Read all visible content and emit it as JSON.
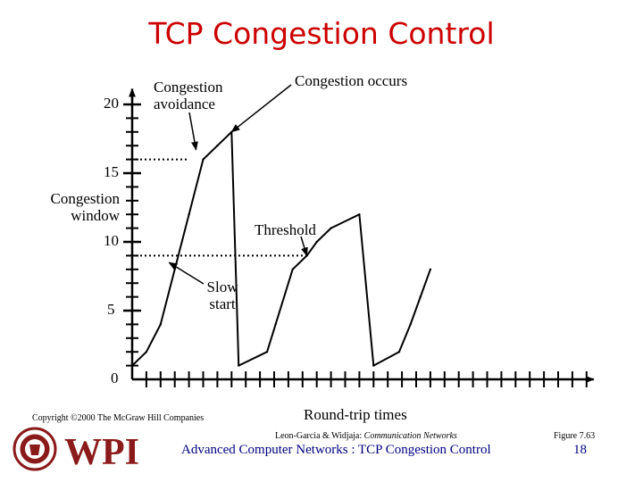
{
  "slide": {
    "title": "TCP Congestion Control",
    "copyright": "Copyright ©2000 The McGraw Hill Companies",
    "source_credit_prefix": "Leon-Garcia & Widjaja: ",
    "source_credit_book": "Communication Networks",
    "figure_ref": "Figure 7.63",
    "footer_title": "Advanced Computer Networks : TCP Congestion Control",
    "page_number": "18",
    "logo_text": "WPI",
    "logo_seal_text": "WORCESTER POLYTECHNIC INSTITUTE 1865"
  },
  "chart_data": {
    "type": "line",
    "title": "",
    "ylabel": "Congestion window",
    "xlabel": "Round-trip times",
    "yticks": [
      0,
      5,
      10,
      15,
      20
    ],
    "ylim": [
      0,
      21
    ],
    "xlim": [
      0,
      32
    ],
    "series": [
      {
        "x": [
          0,
          1,
          2,
          3,
          4,
          5,
          6,
          7,
          7.5,
          9.5,
          10.1,
          11.3,
          12.3,
          13,
          14,
          16,
          17,
          18.8,
          19.6,
          20.3,
          21
        ],
        "y": [
          1,
          2,
          4,
          8,
          12,
          16,
          17,
          18,
          1,
          2,
          4,
          8,
          9,
          10,
          11,
          12,
          1,
          2,
          4,
          6,
          8
        ]
      }
    ],
    "reference_lines": [
      {
        "y": 16,
        "x_start": 0,
        "x_end": 4,
        "style": "dotted"
      },
      {
        "y": 9,
        "x_start": 0,
        "x_end": 12.4,
        "style": "dotted"
      }
    ],
    "annotations": [
      {
        "text": "Congestion occurs",
        "target": [
          7,
          18
        ]
      },
      {
        "text": "Congestion avoidance",
        "target": [
          4.5,
          16.7
        ]
      },
      {
        "text": "Threshold",
        "target": [
          12.3,
          9
        ]
      },
      {
        "text": "Slow start",
        "target": [
          2.6,
          8.5
        ]
      }
    ]
  }
}
